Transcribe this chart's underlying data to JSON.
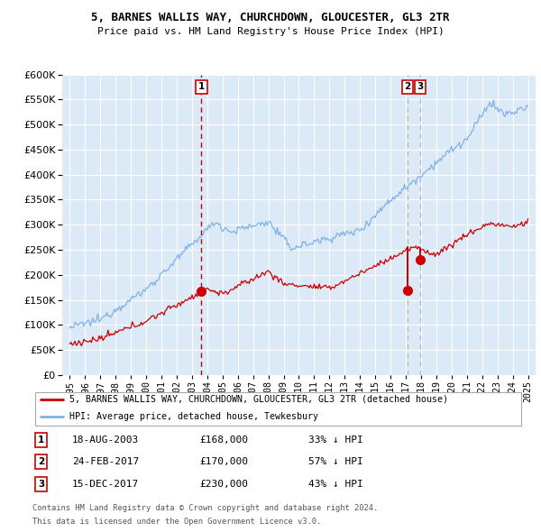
{
  "title1": "5, BARNES WALLIS WAY, CHURCHDOWN, GLOUCESTER, GL3 2TR",
  "title2": "Price paid vs. HM Land Registry's House Price Index (HPI)",
  "ylim": [
    0,
    600000
  ],
  "yticks": [
    0,
    50000,
    100000,
    150000,
    200000,
    250000,
    300000,
    350000,
    400000,
    450000,
    500000,
    550000,
    600000
  ],
  "xlim_start": 1994.5,
  "xlim_end": 2025.5,
  "background_color": "#dce9f7",
  "hpi_color": "#7fb3e8",
  "price_color": "#cc0000",
  "vline_color": "#cc0000",
  "vline2_color": "#aaaaaa",
  "sale_dates": [
    2003.62,
    2017.12,
    2017.95
  ],
  "sale_labels": [
    "1",
    "2",
    "3"
  ],
  "sale_prices": [
    168000,
    170000,
    230000
  ],
  "sale_line_tops": [
    165000,
    165000,
    225000
  ],
  "sale_info": [
    {
      "label": "1",
      "date": "18-AUG-2003",
      "price": "£168,000",
      "pct": "33% ↓ HPI"
    },
    {
      "label": "2",
      "date": "24-FEB-2017",
      "price": "£170,000",
      "pct": "57% ↓ HPI"
    },
    {
      "label": "3",
      "date": "15-DEC-2017",
      "price": "£230,000",
      "pct": "43% ↓ HPI"
    }
  ],
  "legend_property": "5, BARNES WALLIS WAY, CHURCHDOWN, GLOUCESTER, GL3 2TR (detached house)",
  "legend_hpi": "HPI: Average price, detached house, Tewkesbury",
  "footer1": "Contains HM Land Registry data © Crown copyright and database right 2024.",
  "footer2": "This data is licensed under the Open Government Licence v3.0."
}
